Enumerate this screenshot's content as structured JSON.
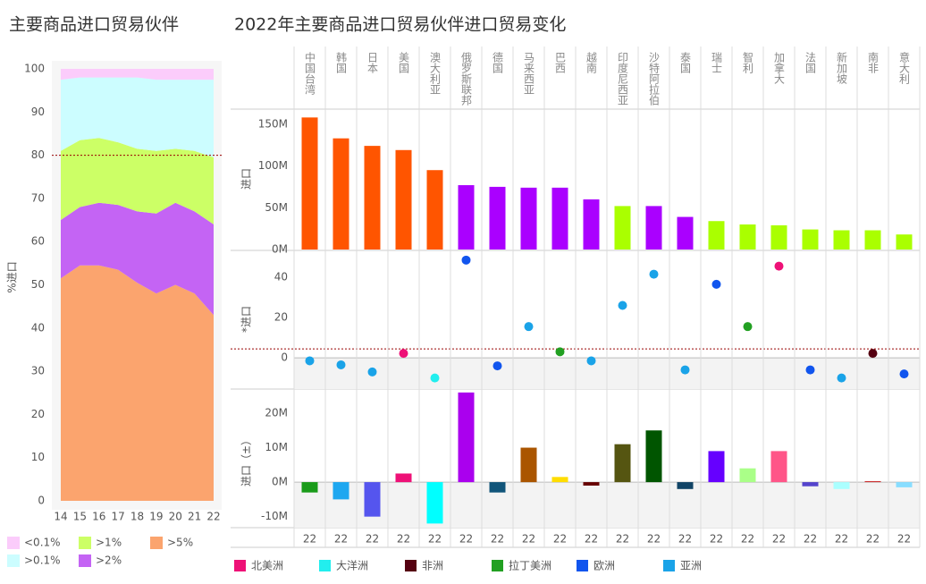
{
  "chart_data": [
    {
      "type": "area",
      "title": "主要商品进口贸易伙伴",
      "y_label": "%进口",
      "categories": [
        "14",
        "15",
        "16",
        "17",
        "18",
        "19",
        "20",
        "21",
        "22"
      ],
      "series": [
        {
          "name": ">5%",
          "color": "#fba46e",
          "values": [
            51.5,
            54.5,
            54.5,
            53.5,
            50.5,
            48,
            50,
            48,
            43
          ]
        },
        {
          "name": ">2%",
          "color": "#c464f4",
          "values": [
            13.5,
            13.5,
            14.5,
            15,
            16.5,
            18.5,
            19,
            19,
            21
          ]
        },
        {
          "name": ">1%",
          "color": "#ccff66",
          "values": [
            16,
            15.5,
            15,
            14.5,
            14.5,
            14.5,
            12.5,
            14,
            15.5
          ]
        },
        {
          "name": ">0.1%",
          "color": "#ccfdff",
          "values": [
            16.5,
            14.5,
            14,
            15,
            16.5,
            16.5,
            16,
            16.5,
            18
          ]
        },
        {
          "name": "<0.1%",
          "color": "#fbccfb",
          "values": [
            2.5,
            2,
            2,
            2,
            2,
            2.5,
            2.5,
            2.5,
            2.5
          ]
        }
      ],
      "ylim": [
        0,
        100
      ],
      "yticks": [
        0,
        10,
        20,
        30,
        40,
        50,
        60,
        70,
        80,
        90,
        100
      ],
      "reference_line": 80
    },
    {
      "type": "bar",
      "title": "2022年主要商品进口贸易伙伴进口贸易变化",
      "y_label": "进口",
      "categories": [
        "中国台湾",
        "韩国",
        "日本",
        "美国",
        "澳大利亚",
        "俄罗斯联邦",
        "德国",
        "马来西亚",
        "巴西",
        "越南",
        "印度尼西亚",
        "沙特阿拉伯",
        "泰国",
        "瑞士",
        "智利",
        "加拿大",
        "法国",
        "新加坡",
        "南非",
        "意大利"
      ],
      "values": [
        158000000,
        133000000,
        124000000,
        119000000,
        95000000,
        77000000,
        75000000,
        74000000,
        74000000,
        60000000,
        52000000,
        52000000,
        39000000,
        34000000,
        30000000,
        29000000,
        24000000,
        23000000,
        23000000,
        18000000
      ],
      "colors": [
        "#ff5500",
        "#ff5500",
        "#ff5500",
        "#ff5500",
        "#ff5500",
        "#aa00ff",
        "#aa00ff",
        "#aa00ff",
        "#aa00ff",
        "#aa00ff",
        "#aaff00",
        "#aa00ff",
        "#aa00ff",
        "#aaff00",
        "#aaff00",
        "#aaff00",
        "#aaff00",
        "#aaff00",
        "#aaff00",
        "#aaff00"
      ],
      "ylim": [
        0,
        168000000
      ],
      "yticks": [
        {
          "value": 0,
          "label": "0M"
        },
        {
          "value": 50000000,
          "label": "50M"
        },
        {
          "value": 100000000,
          "label": "100M"
        },
        {
          "value": 150000000,
          "label": "150M"
        }
      ]
    },
    {
      "type": "scatter",
      "y_label": "*进口",
      "ylim": [
        -15.5,
        53.3
      ],
      "yticks": [
        0,
        20,
        40
      ],
      "reference_line": 4.4,
      "series": [
        {
          "name": "北美洲",
          "color": "#ee1177",
          "values": [
            null,
            null,
            null,
            2.2,
            null,
            null,
            null,
            null,
            null,
            null,
            null,
            null,
            null,
            null,
            null,
            45.5,
            null,
            null,
            null,
            null
          ]
        },
        {
          "name": "大洋洲",
          "color": "#22eeee",
          "values": [
            null,
            null,
            null,
            null,
            -10,
            null,
            null,
            null,
            null,
            null,
            null,
            null,
            null,
            null,
            null,
            null,
            null,
            null,
            null,
            null
          ]
        },
        {
          "name": "非洲",
          "color": "#550011",
          "values": [
            null,
            null,
            null,
            null,
            null,
            null,
            null,
            null,
            null,
            null,
            null,
            null,
            null,
            null,
            null,
            null,
            null,
            null,
            2.2,
            null
          ]
        },
        {
          "name": "拉丁美洲",
          "color": "#22a022",
          "values": [
            null,
            null,
            null,
            null,
            null,
            null,
            null,
            null,
            3,
            null,
            null,
            null,
            null,
            null,
            15.5,
            null,
            null,
            null,
            null,
            null
          ]
        },
        {
          "name": "欧洲",
          "color": "#1155ee",
          "values": [
            null,
            null,
            null,
            null,
            null,
            48.5,
            -4,
            null,
            null,
            null,
            null,
            null,
            null,
            36.5,
            null,
            null,
            -6,
            null,
            null,
            -8
          ]
        },
        {
          "name": "亚洲",
          "color": "#1aa3e8",
          "values": [
            -1.5,
            -3.5,
            -7,
            null,
            null,
            null,
            null,
            15.5,
            null,
            -1.5,
            26,
            41.5,
            -6,
            null,
            null,
            null,
            null,
            -10,
            null,
            null
          ]
        }
      ]
    },
    {
      "type": "bar",
      "y_label": "进口（±）",
      "categories": [
        "22",
        "22",
        "22",
        "22",
        "22",
        "22",
        "22",
        "22",
        "22",
        "22",
        "22",
        "22",
        "22",
        "22",
        "22",
        "22",
        "22",
        "22",
        "22",
        "22"
      ],
      "values": [
        -3000000,
        -5000000,
        -10000000,
        2500000,
        -12000000,
        26000000,
        -3000000,
        10000000,
        1500000,
        -1000000,
        11000000,
        15000000,
        -2000000,
        9000000,
        4000000,
        9000000,
        -1200000,
        -2000000,
        300000,
        -1500000
      ],
      "colors": [
        "#1a9b1a",
        "#1ea7f0",
        "#5555ee",
        "#ee1177",
        "#00ffff",
        "#aa00ee",
        "#11557a",
        "#aa5500",
        "#ffdd00",
        "#660000",
        "#555511",
        "#005500",
        "#114466",
        "#6600ff",
        "#aaff88",
        "#ff5588",
        "#5544cc",
        "#aaffff",
        "#cc3333",
        "#88ddff"
      ],
      "ylim": [
        -13200000,
        27000000
      ],
      "yticks": [
        {
          "value": -10000000,
          "label": "-10M"
        },
        {
          "value": 0,
          "label": "0M"
        },
        {
          "value": 10000000,
          "label": "10M"
        },
        {
          "value": 20000000,
          "label": "20M"
        }
      ]
    }
  ]
}
